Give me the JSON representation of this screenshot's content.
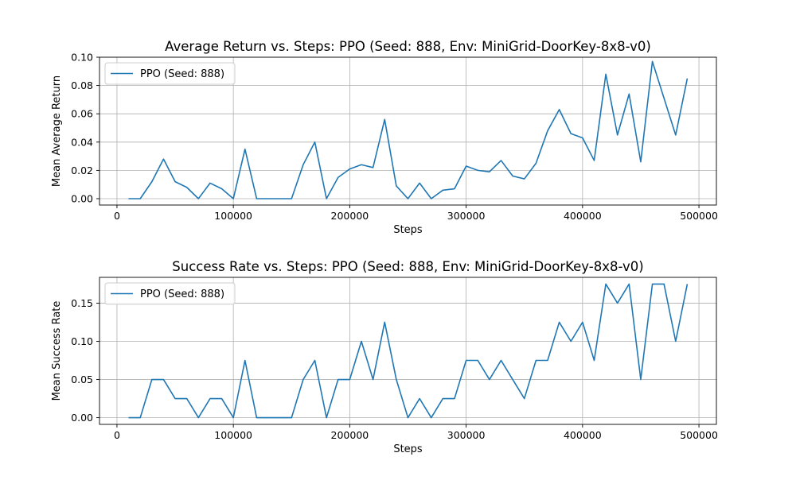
{
  "colors": {
    "series": "#1f77b4",
    "grid": "#b0b0b0",
    "axes": "#000000",
    "legend_border": "#cccccc"
  },
  "chart_data": [
    {
      "type": "line",
      "title": "Average Return vs. Steps: PPO (Seed: 888, Env: MiniGrid-DoorKey-8x8-v0)",
      "xlabel": "Steps",
      "ylabel": "Mean Average Return",
      "xlim": [
        -15000,
        515000
      ],
      "ylim": [
        -0.0045,
        0.1
      ],
      "xticks": [
        0,
        100000,
        200000,
        300000,
        400000,
        500000
      ],
      "yticks": [
        0.0,
        0.02,
        0.04,
        0.06,
        0.08,
        0.1
      ],
      "ytick_labels": [
        "0.00",
        "0.02",
        "0.04",
        "0.06",
        "0.08",
        "0.10"
      ],
      "grid": true,
      "legend_position": "upper-left",
      "series": [
        {
          "name": "PPO (Seed: 888)",
          "x": [
            10000,
            20000,
            30000,
            40000,
            50000,
            60000,
            70000,
            80000,
            90000,
            100000,
            110000,
            120000,
            130000,
            140000,
            150000,
            160000,
            170000,
            180000,
            190000,
            200000,
            210000,
            220000,
            230000,
            240000,
            250000,
            260000,
            270000,
            280000,
            290000,
            300000,
            310000,
            320000,
            330000,
            340000,
            350000,
            360000,
            370000,
            380000,
            390000,
            400000,
            410000,
            420000,
            430000,
            440000,
            450000,
            460000,
            470000,
            480000,
            490000
          ],
          "y": [
            0.0,
            0.0,
            0.012,
            0.028,
            0.012,
            0.008,
            0.0,
            0.011,
            0.007,
            0.0,
            0.035,
            0.0,
            0.0,
            0.0,
            0.0,
            0.024,
            0.04,
            0.0,
            0.015,
            0.021,
            0.024,
            0.022,
            0.056,
            0.009,
            0.0,
            0.011,
            0.0,
            0.006,
            0.007,
            0.023,
            0.02,
            0.019,
            0.027,
            0.016,
            0.014,
            0.025,
            0.048,
            0.063,
            0.046,
            0.043,
            0.027,
            0.088,
            0.045,
            0.074,
            0.026,
            0.097,
            0.071,
            0.045,
            0.085
          ]
        }
      ]
    },
    {
      "type": "line",
      "title": "Success Rate vs. Steps: PPO (Seed: 888, Env: MiniGrid-DoorKey-8x8-v0)",
      "xlabel": "Steps",
      "ylabel": "Mean Success Rate",
      "xlim": [
        -15000,
        515000
      ],
      "ylim": [
        -0.00875,
        0.18375
      ],
      "xticks": [
        0,
        100000,
        200000,
        300000,
        400000,
        500000
      ],
      "yticks": [
        0.0,
        0.05,
        0.1,
        0.15
      ],
      "ytick_labels": [
        "0.00",
        "0.05",
        "0.10",
        "0.15"
      ],
      "grid": true,
      "legend_position": "upper-left",
      "series": [
        {
          "name": "PPO (Seed: 888)",
          "x": [
            10000,
            20000,
            30000,
            40000,
            50000,
            60000,
            70000,
            80000,
            90000,
            100000,
            110000,
            120000,
            130000,
            140000,
            150000,
            160000,
            170000,
            180000,
            190000,
            200000,
            210000,
            220000,
            230000,
            240000,
            250000,
            260000,
            270000,
            280000,
            290000,
            300000,
            310000,
            320000,
            330000,
            340000,
            350000,
            360000,
            370000,
            380000,
            390000,
            400000,
            410000,
            420000,
            430000,
            440000,
            450000,
            460000,
            470000,
            480000,
            490000
          ],
          "y": [
            0.0,
            0.0,
            0.05,
            0.05,
            0.025,
            0.025,
            0.0,
            0.025,
            0.025,
            0.0,
            0.075,
            0.0,
            0.0,
            0.0,
            0.0,
            0.05,
            0.075,
            0.0,
            0.05,
            0.05,
            0.1,
            0.05,
            0.125,
            0.05,
            0.0,
            0.025,
            0.0,
            0.025,
            0.025,
            0.075,
            0.075,
            0.05,
            0.075,
            0.05,
            0.025,
            0.075,
            0.075,
            0.125,
            0.1,
            0.125,
            0.075,
            0.175,
            0.15,
            0.175,
            0.05,
            0.175,
            0.175,
            0.1,
            0.175
          ]
        }
      ]
    }
  ]
}
